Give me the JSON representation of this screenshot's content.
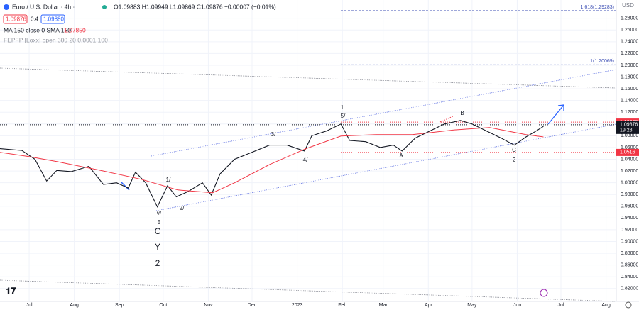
{
  "chart_data": {
    "type": "line",
    "title": "Euro / U.S. Dollar · 4h ·",
    "ohlc": "O1.09883 H1.09949 L1.09869 C1.09876 −0.00007 (−0.01%)",
    "bid": "1.09876",
    "spread": "0.4",
    "ask": "1.09880",
    "ma_legend": "MA 150 close 0 SMA 150",
    "ma_value": "1.07850",
    "indicator_legend": "FEPFP [Loxx] open 300 20 0.0001 100",
    "currency": "USD",
    "xlim": [
      -20,
      403
    ],
    "xticks": [
      {
        "value": 0,
        "label": "Jul"
      },
      {
        "value": 31,
        "label": "Aug"
      },
      {
        "value": 62,
        "label": "Sep"
      },
      {
        "value": 92,
        "label": "Oct"
      },
      {
        "value": 123,
        "label": "Nov"
      },
      {
        "value": 153,
        "label": "Dec"
      },
      {
        "value": 184,
        "label": "2023"
      },
      {
        "value": 215,
        "label": "Feb"
      },
      {
        "value": 243,
        "label": "Mar"
      },
      {
        "value": 274,
        "label": "Apr"
      },
      {
        "value": 304,
        "label": "May"
      },
      {
        "value": 335,
        "label": "Jun"
      },
      {
        "value": 365,
        "label": "Jul"
      },
      {
        "value": 396,
        "label": "Aug"
      }
    ],
    "ylim": [
      0.798,
      1.311
    ],
    "yticks": [
      {
        "value": 0.82,
        "label": "0.82000"
      },
      {
        "value": 0.84,
        "label": "0.84000"
      },
      {
        "value": 0.86,
        "label": "0.86000"
      },
      {
        "value": 0.88,
        "label": "0.88000"
      },
      {
        "value": 0.9,
        "label": "0.90000"
      },
      {
        "value": 0.92,
        "label": "0.92000"
      },
      {
        "value": 0.94,
        "label": "0.94000"
      },
      {
        "value": 0.96,
        "label": "0.96000"
      },
      {
        "value": 0.98,
        "label": "0.98000"
      },
      {
        "value": 1.0,
        "label": "1.00000"
      },
      {
        "value": 1.02,
        "label": "1.02000"
      },
      {
        "value": 1.04,
        "label": "1.04000"
      },
      {
        "value": 1.06,
        "label": "1.06000"
      },
      {
        "value": 1.08,
        "label": "1.08000"
      },
      {
        "value": 1.1,
        "label": "1.10000"
      },
      {
        "value": 1.12,
        "label": "1.12000"
      },
      {
        "value": 1.14,
        "label": "1.14000"
      },
      {
        "value": 1.16,
        "label": "1.16000"
      },
      {
        "value": 1.18,
        "label": "1.18000"
      },
      {
        "value": 1.2,
        "label": "1.20000"
      },
      {
        "value": 1.22,
        "label": "1.22000"
      },
      {
        "value": 1.24,
        "label": "1.24000"
      },
      {
        "value": 1.26,
        "label": "1.26000"
      },
      {
        "value": 1.28,
        "label": "1.28000"
      }
    ],
    "series": [
      {
        "color": "#131722",
        "x": [
          -20,
          -5,
          4,
          12,
          19,
          29,
          41,
          51,
          60,
          68,
          73,
          80,
          88,
          95,
          101,
          109,
          119,
          125,
          131,
          141,
          153,
          165,
          177,
          189,
          194,
          204,
          214,
          220,
          231,
          241,
          250,
          256,
          265,
          275,
          285,
          296,
          304,
          314,
          324,
          333,
          341,
          348,
          353
        ],
        "values": [
          1.058,
          1.055,
          1.04,
          1.003,
          1.021,
          1.019,
          1.028,
          0.997,
          1.0,
          0.991,
          1.018,
          1.0,
          0.959,
          0.995,
          0.976,
          0.985,
          1.0,
          0.979,
          1.015,
          1.04,
          1.052,
          1.064,
          1.064,
          1.054,
          1.08,
          1.088,
          1.1,
          1.072,
          1.07,
          1.06,
          1.064,
          1.054,
          1.076,
          1.088,
          1.1,
          1.106,
          1.1,
          1.088,
          1.076,
          1.064,
          1.078,
          1.088,
          1.096
        ]
      },
      {
        "color": "#f23645",
        "x": [
          -20,
          0,
          19,
          48,
          77,
          102,
          126,
          141,
          165,
          190,
          214,
          238,
          263,
          292,
          316,
          341,
          353
        ],
        "values": [
          1.0517,
          1.0445,
          1.036,
          1.0215,
          1.0059,
          0.9877,
          0.983,
          1.0,
          1.031,
          1.058,
          1.0795,
          1.082,
          1.082,
          1.09,
          1.094,
          1.082,
          1.078
        ]
      }
    ],
    "fib_levels": [
      {
        "value": 1.29283,
        "label": "1.618(1.29283)"
      },
      {
        "value": 1.20069,
        "label": "1(1.20069)"
      }
    ],
    "price_lines": [
      {
        "value": 1.10328,
        "color": "#f23645"
      },
      {
        "value": 1.09876,
        "color": "#131722",
        "time": "19:28"
      },
      {
        "value": 1.0516,
        "color": "#f23645"
      }
    ],
    "waves": [
      "1",
      "5/",
      "3/",
      "4/",
      "A",
      "B",
      "C",
      "2",
      "1/",
      "2/",
      "v/",
      "5",
      "C",
      "Y",
      "2"
    ]
  }
}
